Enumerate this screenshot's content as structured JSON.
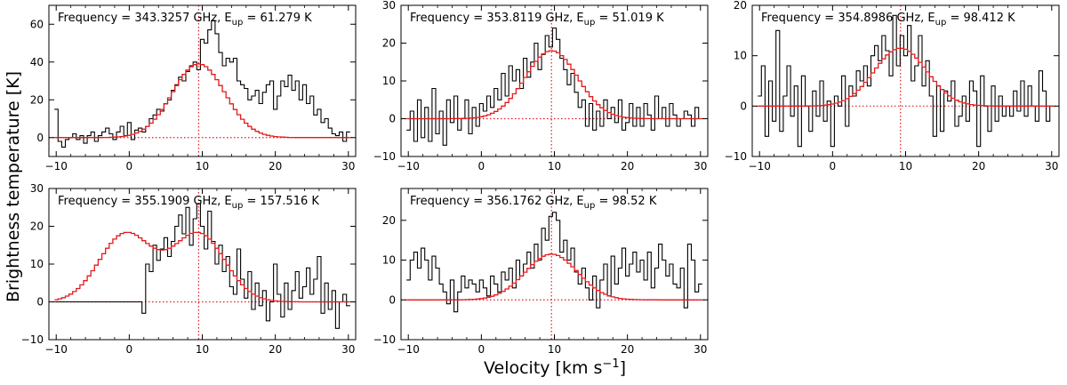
{
  "figure": {
    "ylabel": "Brightness temperature [K]",
    "xlabel_main": "Velocity [km s",
    "xlabel_sup": "−1",
    "xlabel_end": "]"
  },
  "chart_data": [
    {
      "type": "line",
      "title_prefix": "Frequency = 343.3257 GHz, E",
      "title_sub": "up",
      "title_suffix": " = 61.279 K",
      "xlim": [
        -11,
        31
      ],
      "ylim": [
        -10,
        70
      ],
      "xticks": [
        -10,
        0,
        10,
        20,
        30
      ],
      "yticks": [
        0,
        20,
        40,
        60
      ],
      "vline": 9.5,
      "hline": 0,
      "series": [
        {
          "kind": "observed",
          "x": [
            -10,
            -9.5,
            -9,
            -8.5,
            -8,
            -7.5,
            -7,
            -6.5,
            -6,
            -5.5,
            -5,
            -4.5,
            -4,
            -3.5,
            -3,
            -2.5,
            -2,
            -1.5,
            -1,
            -0.5,
            0,
            0.5,
            1,
            1.5,
            2,
            2.5,
            3,
            3.5,
            4,
            4.5,
            5,
            5.5,
            6,
            6.5,
            7,
            7.5,
            8,
            8.5,
            9,
            9.5,
            10,
            10.5,
            11,
            11.5,
            12,
            12.5,
            13,
            13.5,
            14,
            14.5,
            15,
            15.5,
            16,
            16.5,
            17,
            17.5,
            18,
            18.5,
            19,
            19.5,
            20,
            20.5,
            21,
            21.5,
            22,
            22.5,
            23,
            23.5,
            24,
            24.5,
            25,
            25.5,
            26,
            26.5,
            27,
            27.5,
            28,
            28.5,
            29,
            29.5,
            30
          ],
          "y": [
            15,
            -2,
            -5,
            -1,
            0,
            2,
            -1,
            1,
            -3,
            1,
            3,
            -2,
            1,
            3,
            5,
            2,
            -1,
            3,
            6,
            1,
            8,
            -1,
            4,
            5,
            3,
            6,
            10,
            12,
            15,
            14,
            18,
            20,
            25,
            28,
            32,
            30,
            35,
            38,
            40,
            36,
            52,
            50,
            57,
            62,
            55,
            45,
            38,
            42,
            40,
            42,
            30,
            28,
            26,
            20,
            22,
            25,
            18,
            24,
            28,
            30,
            15,
            22,
            30,
            27,
            33,
            25,
            30,
            20,
            28,
            18,
            22,
            12,
            15,
            8,
            10,
            5,
            2,
            1,
            3,
            -2,
            3
          ],
          "color": "#000000"
        },
        {
          "kind": "model",
          "amplitude": 39,
          "center": 9.5,
          "sigma": 3.6,
          "x_start": -10,
          "x_end": 30,
          "color": "#e41a1c"
        }
      ]
    },
    {
      "type": "line",
      "title_prefix": "Frequency = 353.8119 GHz, E",
      "title_sub": "up",
      "title_suffix": " = 51.019 K",
      "xlim": [
        -11,
        31
      ],
      "ylim": [
        -10,
        30
      ],
      "xticks": [
        -10,
        0,
        10,
        20,
        30
      ],
      "yticks": [
        -10,
        0,
        10,
        20,
        30
      ],
      "vline": 9.6,
      "hline": 0,
      "series": [
        {
          "kind": "observed",
          "x": [
            -10,
            -9.5,
            -9,
            -8.5,
            -8,
            -7.5,
            -7,
            -6.5,
            -6,
            -5.5,
            -5,
            -4.5,
            -4,
            -3.5,
            -3,
            -2.5,
            -2,
            -1.5,
            -1,
            -0.5,
            0,
            0.5,
            1,
            1.5,
            2,
            2.5,
            3,
            3.5,
            4,
            4.5,
            5,
            5.5,
            6,
            6.5,
            7,
            7.5,
            8,
            8.5,
            9,
            9.5,
            10,
            10.5,
            11,
            11.5,
            12,
            12.5,
            13,
            13.5,
            14,
            14.5,
            15,
            15.5,
            16,
            16.5,
            17,
            17.5,
            18,
            18.5,
            19,
            19.5,
            20,
            20.5,
            21,
            21.5,
            22,
            22.5,
            23,
            23.5,
            24,
            24.5,
            25,
            25.5,
            26,
            26.5,
            27,
            27.5,
            28,
            28.5,
            29,
            29.5,
            30
          ],
          "y": [
            -3,
            2,
            -6,
            5,
            -5,
            3,
            -6,
            8,
            -4,
            2,
            -7,
            5,
            -1,
            6,
            -3,
            0,
            5,
            -4,
            3,
            -2,
            4,
            2,
            6,
            3,
            8,
            5,
            12,
            6,
            14,
            10,
            13,
            8,
            16,
            11,
            15,
            20,
            13,
            17,
            22,
            19,
            24,
            21,
            16,
            13,
            9,
            12,
            7,
            3,
            5,
            -2,
            4,
            -3,
            2,
            -2,
            5,
            0,
            3,
            -1,
            5,
            -3,
            -1,
            4,
            -2,
            3,
            -2,
            4,
            1,
            -3,
            6,
            0,
            3,
            -2,
            4,
            1,
            -2,
            0,
            2,
            1,
            -2,
            3,
            0
          ],
          "color": "#000000"
        },
        {
          "kind": "model",
          "amplitude": 18,
          "center": 9.6,
          "sigma": 3.6,
          "x_start": -10,
          "x_end": 30,
          "color": "#e41a1c"
        }
      ]
    },
    {
      "type": "line",
      "title_prefix": "Frequency = 354.8986 GHz, E",
      "title_sub": "up",
      "title_suffix": " = 98.412 K",
      "xlim": [
        -11,
        31
      ],
      "ylim": [
        -10,
        20
      ],
      "xticks": [
        -10,
        0,
        10,
        20,
        30
      ],
      "yticks": [
        -10,
        0,
        10,
        20
      ],
      "vline": 9.3,
      "hline": 0,
      "series": [
        {
          "kind": "observed",
          "x": [
            -10,
            -9.5,
            -9,
            -8.5,
            -8,
            -7.5,
            -7,
            -6.5,
            -6,
            -5.5,
            -5,
            -4.5,
            -4,
            -3.5,
            -3,
            -2.5,
            -2,
            -1.5,
            -1,
            -0.5,
            0,
            0.5,
            1,
            1.5,
            2,
            2.5,
            3,
            3.5,
            4,
            4.5,
            5,
            5.5,
            6,
            6.5,
            7,
            7.5,
            8,
            8.5,
            9,
            9.5,
            10,
            10.5,
            11,
            11.5,
            12,
            12.5,
            13,
            13.5,
            14,
            14.5,
            15,
            15.5,
            16,
            16.5,
            17,
            17.5,
            18,
            18.5,
            19,
            19.5,
            20,
            20.5,
            21,
            21.5,
            22,
            22.5,
            23,
            23.5,
            24,
            24.5,
            25,
            25.5,
            26,
            26.5,
            27,
            27.5,
            28,
            28.5,
            29,
            29.5,
            30
          ],
          "y": [
            2,
            8,
            -6,
            5,
            -3,
            15,
            -5,
            2,
            8,
            -2,
            4,
            -8,
            6,
            0,
            -5,
            3,
            -2,
            5,
            -3,
            1,
            -8,
            2,
            0,
            6,
            -4,
            4,
            2,
            7,
            5,
            8,
            4,
            10,
            12,
            9,
            14,
            11,
            6,
            18,
            8,
            14,
            10,
            16,
            5,
            8,
            14,
            4,
            9,
            2,
            -6,
            4,
            -5,
            3,
            1,
            5,
            -4,
            -2,
            2,
            -3,
            5,
            3,
            -8,
            6,
            0,
            -5,
            4,
            -3,
            2,
            -2,
            0,
            -2,
            3,
            -1,
            5,
            -2,
            4,
            0,
            -3,
            7,
            3,
            -3,
            0
          ],
          "color": "#000000"
        },
        {
          "kind": "model",
          "amplitude": 11.5,
          "center": 9.3,
          "sigma": 3.6,
          "x_start": -10,
          "x_end": 30,
          "color": "#e41a1c"
        }
      ]
    },
    {
      "type": "line",
      "title_prefix": "Frequency = 355.1909 GHz, E",
      "title_sub": "up",
      "title_suffix": " = 157.516 K",
      "xlim": [
        -11,
        31
      ],
      "ylim": [
        -10,
        30
      ],
      "xticks": [
        -10,
        0,
        10,
        20,
        30
      ],
      "yticks": [
        -10,
        0,
        10,
        20,
        30
      ],
      "vline": 9.5,
      "hline": 0,
      "series": [
        {
          "kind": "observed",
          "x": [
            -10,
            -9.5,
            -9,
            -8.5,
            -8,
            -7.5,
            -7,
            -6.5,
            -6,
            -5.5,
            -5,
            -4.5,
            -4,
            -3.5,
            -3,
            -2.5,
            -2,
            -1.5,
            -1,
            -0.5,
            0,
            0.5,
            1,
            1.5,
            2,
            2.5,
            3,
            3.5,
            4,
            4.5,
            5,
            5.5,
            6,
            6.5,
            7,
            7.5,
            8,
            8.5,
            9,
            9.5,
            10,
            10.5,
            11,
            11.5,
            12,
            12.5,
            13,
            13.5,
            14,
            14.5,
            15,
            15.5,
            16,
            16.5,
            17,
            17.5,
            18,
            18.5,
            19,
            19.5,
            20,
            20.5,
            21,
            21.5,
            22,
            22.5,
            23,
            23.5,
            24,
            24.5,
            25,
            25.5,
            26,
            26.5,
            27,
            27.5,
            28,
            28.5,
            29,
            29.5,
            30
          ],
          "y": [
            0,
            0,
            0,
            0,
            0,
            0,
            0,
            0,
            0,
            0,
            0,
            0,
            0,
            0,
            0,
            0,
            0,
            0,
            0,
            0,
            0,
            0,
            0,
            0,
            -3,
            10,
            8,
            15,
            11,
            14,
            17,
            12,
            16,
            20,
            23,
            18,
            25,
            15,
            22,
            26,
            20,
            14,
            24,
            16,
            10,
            15,
            8,
            12,
            4,
            2,
            14,
            6,
            1,
            8,
            -2,
            5,
            -1,
            3,
            -5,
            0,
            10,
            2,
            -4,
            5,
            -2,
            3,
            8,
            1,
            4,
            9,
            2,
            6,
            12,
            -3,
            5,
            -2,
            3,
            -7,
            0,
            2,
            -1
          ],
          "color": "#000000"
        },
        {
          "kind": "model",
          "components": [
            {
              "amplitude": 18,
              "center": -0.5,
              "sigma": 3.6
            },
            {
              "amplitude": 18,
              "center": 9.5,
              "sigma": 3.6
            }
          ],
          "x_start": -10,
          "x_end": 30,
          "color": "#e41a1c"
        }
      ]
    },
    {
      "type": "line",
      "title_prefix": "Frequency = 356.1762 GHz, E",
      "title_sub": "up",
      "title_suffix": " = 98.52 K",
      "xlim": [
        -11,
        31
      ],
      "ylim": [
        -10,
        28
      ],
      "xticks": [
        -10,
        0,
        10,
        20,
        30
      ],
      "yticks": [
        -10,
        0,
        10,
        20
      ],
      "vline": 9.6,
      "hline": 0,
      "series": [
        {
          "kind": "observed",
          "x": [
            -10,
            -9.5,
            -9,
            -8.5,
            -8,
            -7.5,
            -7,
            -6.5,
            -6,
            -5.5,
            -5,
            -4.5,
            -4,
            -3.5,
            -3,
            -2.5,
            -2,
            -1.5,
            -1,
            -0.5,
            0,
            0.5,
            1,
            1.5,
            2,
            2.5,
            3,
            3.5,
            4,
            4.5,
            5,
            5.5,
            6,
            6.5,
            7,
            7.5,
            8,
            8.5,
            9,
            9.5,
            10,
            10.5,
            11,
            11.5,
            12,
            12.5,
            13,
            13.5,
            14,
            14.5,
            15,
            15.5,
            16,
            16.5,
            17,
            17.5,
            18,
            18.5,
            19,
            19.5,
            20,
            20.5,
            21,
            21.5,
            22,
            22.5,
            23,
            23.5,
            24,
            24.5,
            25,
            25.5,
            26,
            26.5,
            27,
            27.5,
            28,
            28.5,
            29,
            29.5,
            30
          ],
          "y": [
            5,
            10,
            12,
            8,
            13,
            10,
            5,
            11,
            8,
            4,
            2,
            -1,
            5,
            -3,
            2,
            6,
            3,
            5,
            4,
            2,
            5,
            3,
            1,
            6,
            4,
            2,
            7,
            5,
            8,
            3,
            10,
            6,
            9,
            12,
            8,
            14,
            10,
            18,
            15,
            21,
            22,
            20,
            12,
            15,
            10,
            13,
            7,
            4,
            8,
            3,
            0,
            6,
            -2,
            5,
            9,
            1,
            11,
            4,
            8,
            13,
            6,
            9,
            12,
            7,
            10,
            5,
            12,
            3,
            8,
            14,
            10,
            6,
            9,
            4,
            3,
            8,
            -2,
            14,
            10,
            2,
            4
          ],
          "color": "#000000"
        },
        {
          "kind": "model",
          "amplitude": 11.5,
          "center": 9.6,
          "sigma": 3.6,
          "x_start": -10,
          "x_end": 30,
          "color": "#e41a1c"
        }
      ]
    }
  ]
}
